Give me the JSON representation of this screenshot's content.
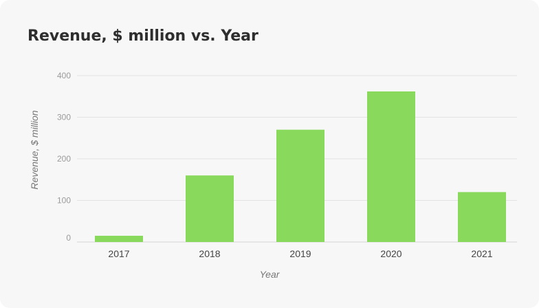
{
  "chart_data": {
    "type": "bar",
    "title": "Revenue, $ million vs. Year",
    "xlabel": "Year",
    "ylabel": "Revenue, $ million",
    "categories": [
      "2017",
      "2018",
      "2019",
      "2020",
      "2021"
    ],
    "values": [
      15,
      160,
      270,
      362,
      120
    ],
    "ylim": [
      0,
      400
    ],
    "yticks": [
      0,
      100,
      200,
      300,
      400
    ],
    "grid": true,
    "bar_color": "#88d95c"
  }
}
